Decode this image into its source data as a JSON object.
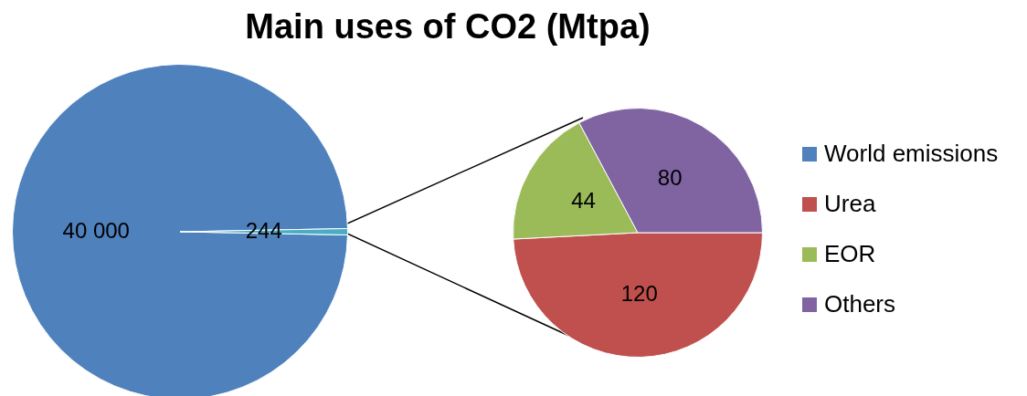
{
  "chart_data": [
    {
      "type": "pie",
      "title": "Main uses of CO2 (Mtpa)",
      "categories": [
        "World emissions",
        null
      ],
      "values": [
        40000,
        244
      ],
      "colors": [
        "#4f81bd",
        "#4bacc6"
      ],
      "value_labels": [
        "40 000",
        "244"
      ],
      "legend": "right"
    },
    {
      "type": "pie",
      "categories": [
        "Urea",
        "EOR",
        "Others"
      ],
      "values": [
        120,
        44,
        80
      ],
      "colors": [
        "#c0504d",
        "#9bbb59",
        "#8064a2"
      ],
      "data_labels": true,
      "legend": "right"
    }
  ]
}
